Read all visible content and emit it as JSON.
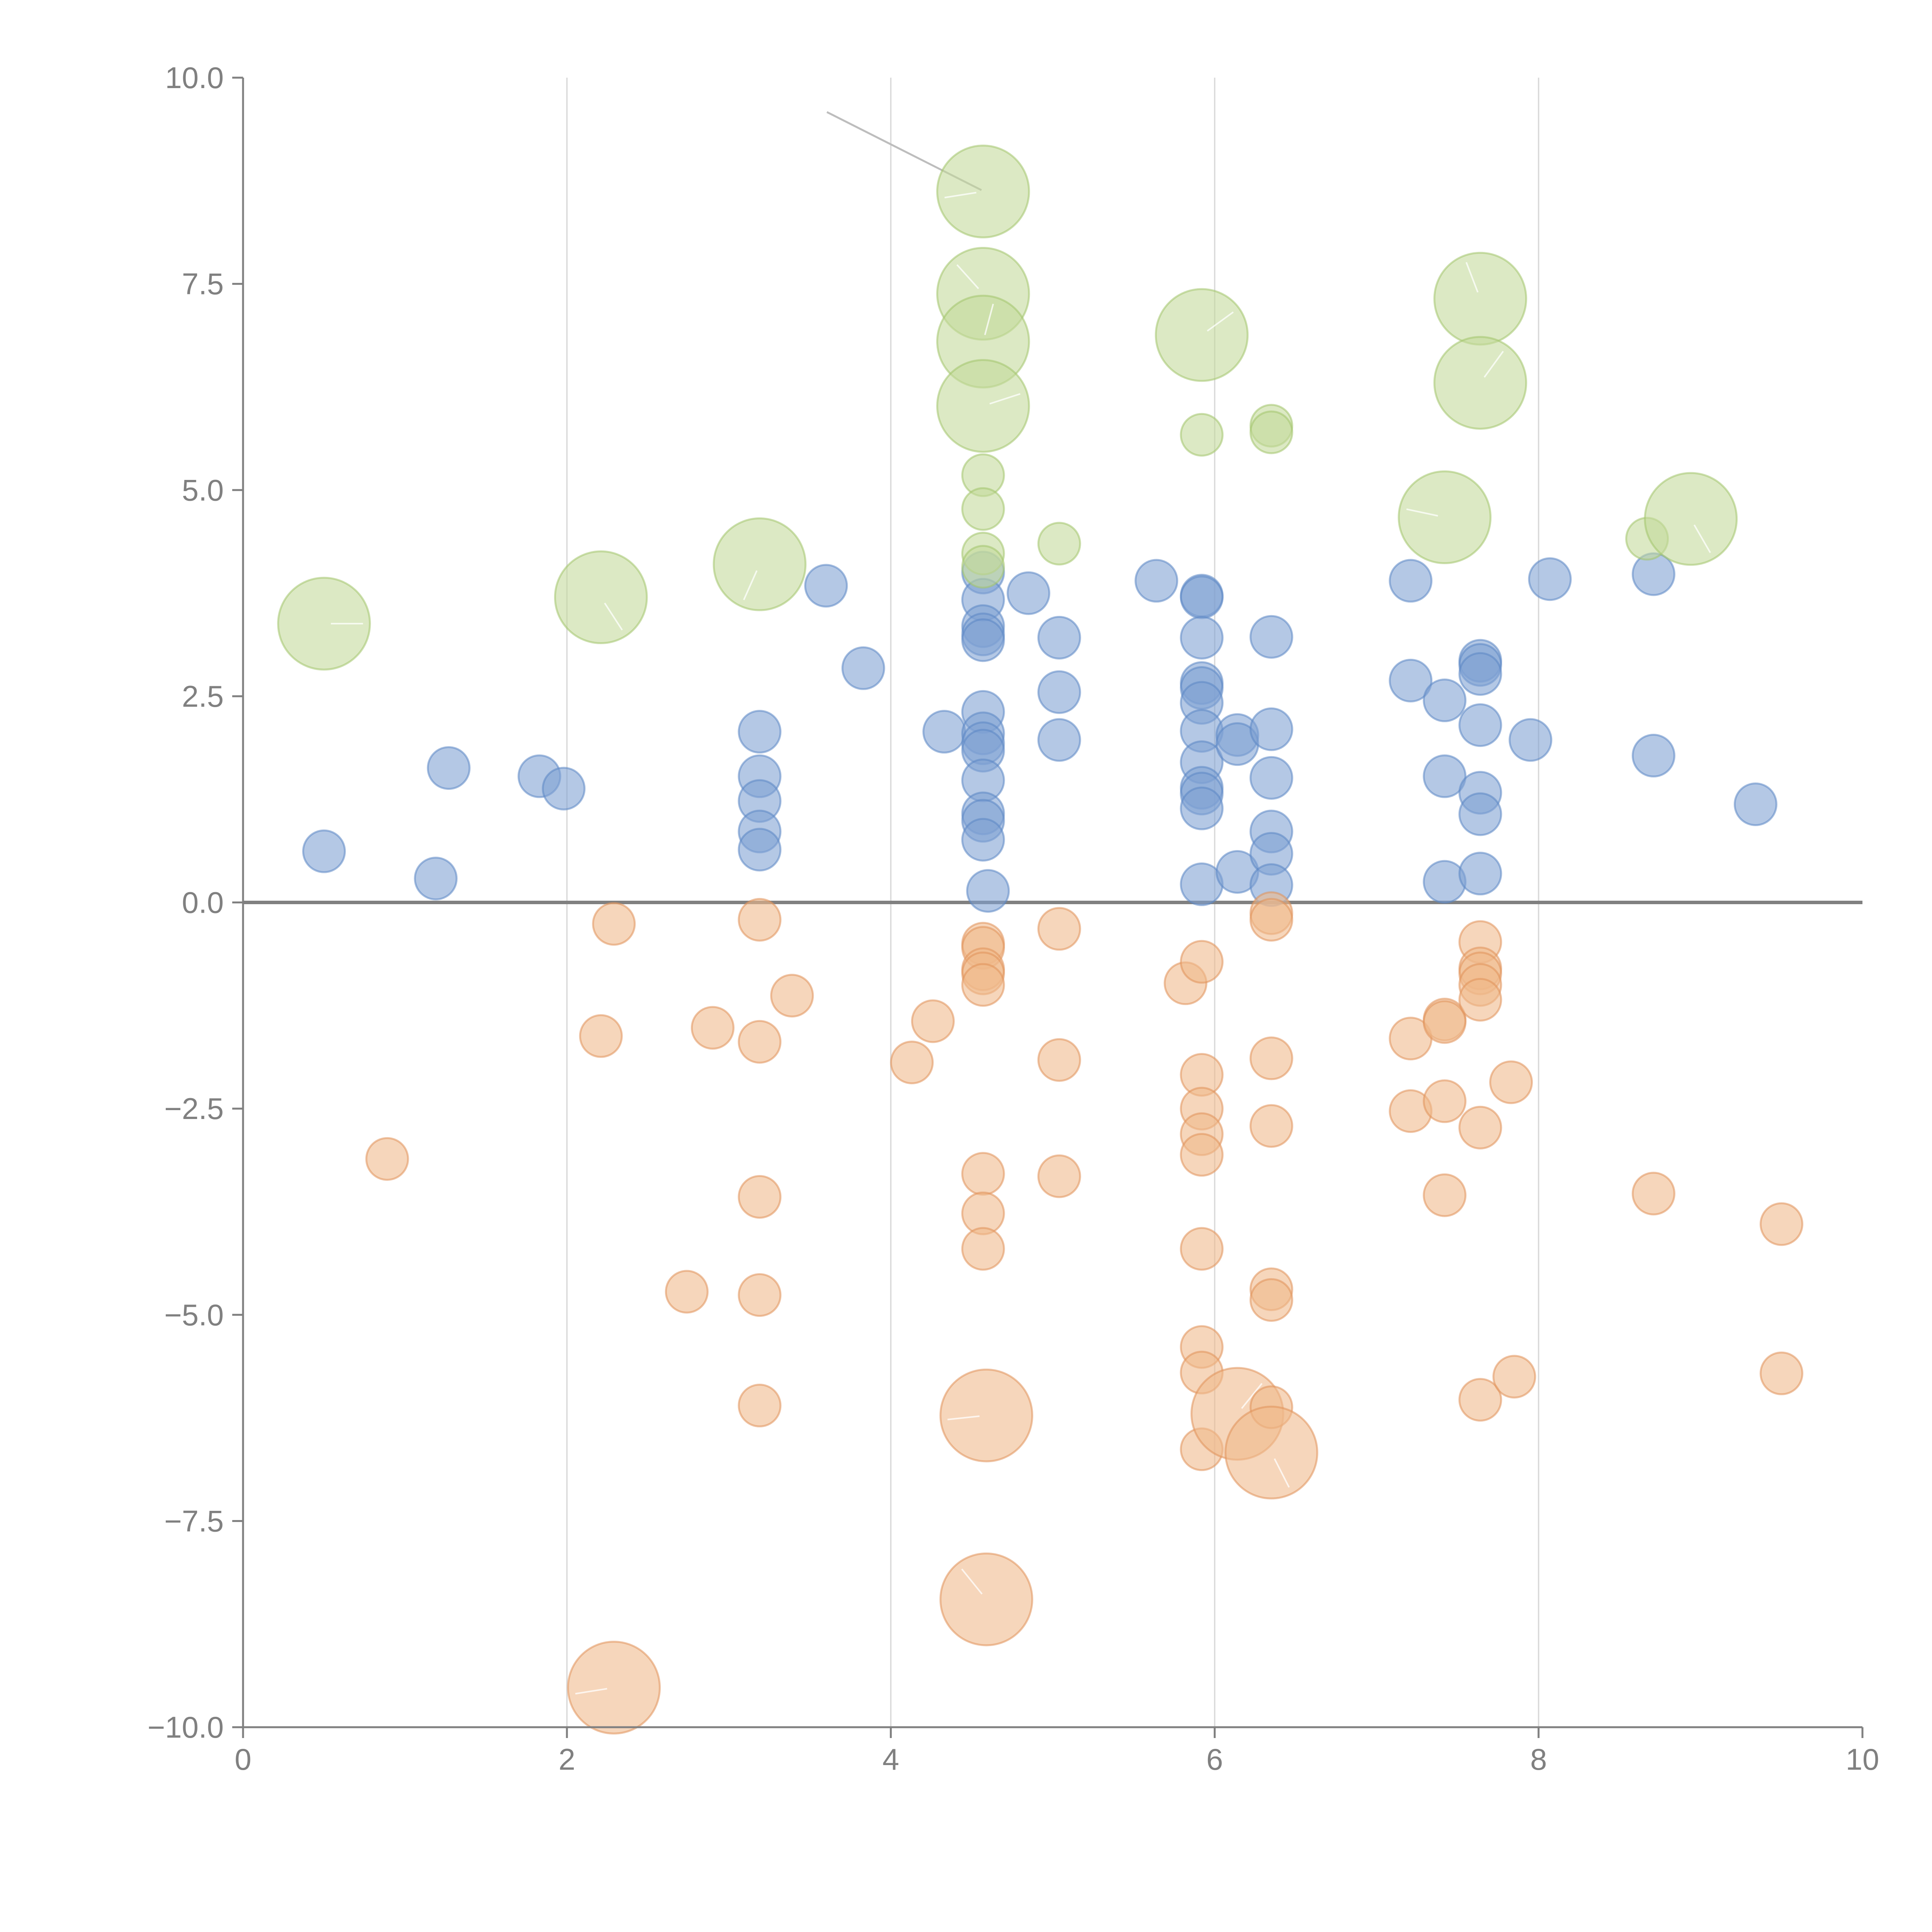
{
  "chart_data": {
    "type": "scatter",
    "subtype": "bubble",
    "title": "",
    "xlabel": "",
    "ylabel": "",
    "xlim": [
      0,
      10
    ],
    "ylim": [
      -10,
      10
    ],
    "x_ticks": [
      0,
      2,
      4,
      6,
      8,
      10
    ],
    "x_tick_labels": [
      "0",
      "2",
      "4",
      "6",
      "8",
      "10"
    ],
    "y_ticks": [
      10,
      7.5,
      5,
      2.5,
      0,
      -2.5,
      -5,
      -7.5,
      -10
    ],
    "y_tick_labels": [
      "10.0",
      "7.5",
      "5.0",
      "2.5",
      "0.0",
      "−2.5",
      "−5.0",
      "−7.5",
      "−10.0"
    ],
    "vertical_gridlines": [
      2,
      4,
      6,
      8
    ],
    "reference_line_y": 0,
    "colors": {
      "blue": "#7ea1d3",
      "blue_stroke": "#5b86c4",
      "orange": "#f0b88a",
      "orange_stroke": "#e0925a",
      "green": "#c2d99a",
      "green_stroke": "#a3c46c",
      "axis": "#808080",
      "grid": "#d9d9d9"
    },
    "series": [
      {
        "name": "blue",
        "color": "#7ea1d3",
        "points": [
          {
            "x": 0.5,
            "y": 0.62,
            "size": 1
          },
          {
            "x": 1.19,
            "y": 0.29,
            "size": 1
          },
          {
            "x": 1.27,
            "y": 1.63,
            "size": 1
          },
          {
            "x": 1.83,
            "y": 1.53,
            "size": 1
          },
          {
            "x": 1.98,
            "y": 1.38,
            "size": 1
          },
          {
            "x": 3.19,
            "y": 2.07,
            "size": 1
          },
          {
            "x": 3.19,
            "y": 1.53,
            "size": 1
          },
          {
            "x": 3.19,
            "y": 1.23,
            "size": 1
          },
          {
            "x": 3.19,
            "y": 0.86,
            "size": 1
          },
          {
            "x": 3.19,
            "y": 0.64,
            "size": 1
          },
          {
            "x": 3.6,
            "y": 3.84,
            "size": 1
          },
          {
            "x": 3.83,
            "y": 2.84,
            "size": 1
          },
          {
            "x": 4.33,
            "y": 2.07,
            "size": 1
          },
          {
            "x": 4.57,
            "y": 4.0,
            "size": 1
          },
          {
            "x": 4.57,
            "y": 3.67,
            "size": 1
          },
          {
            "x": 4.57,
            "y": 3.35,
            "size": 1
          },
          {
            "x": 4.57,
            "y": 3.25,
            "size": 1
          },
          {
            "x": 4.57,
            "y": 3.18,
            "size": 1
          },
          {
            "x": 4.57,
            "y": 2.31,
            "size": 1
          },
          {
            "x": 4.57,
            "y": 2.05,
            "size": 1
          },
          {
            "x": 4.57,
            "y": 1.93,
            "size": 1
          },
          {
            "x": 4.57,
            "y": 1.84,
            "size": 1
          },
          {
            "x": 4.57,
            "y": 1.48,
            "size": 1
          },
          {
            "x": 4.57,
            "y": 1.08,
            "size": 1
          },
          {
            "x": 4.57,
            "y": 0.99,
            "size": 1
          },
          {
            "x": 4.57,
            "y": 0.76,
            "size": 1
          },
          {
            "x": 4.6,
            "y": 0.14,
            "size": 1
          },
          {
            "x": 4.85,
            "y": 3.75,
            "size": 1
          },
          {
            "x": 5.04,
            "y": 3.21,
            "size": 1
          },
          {
            "x": 5.04,
            "y": 2.55,
            "size": 1
          },
          {
            "x": 5.04,
            "y": 1.97,
            "size": 1
          },
          {
            "x": 5.64,
            "y": 3.9,
            "size": 1
          },
          {
            "x": 5.92,
            "y": 3.72,
            "size": 1
          },
          {
            "x": 5.92,
            "y": 3.7,
            "size": 1
          },
          {
            "x": 5.92,
            "y": 3.21,
            "size": 1
          },
          {
            "x": 5.92,
            "y": 2.66,
            "size": 1
          },
          {
            "x": 5.92,
            "y": 2.6,
            "size": 1
          },
          {
            "x": 5.92,
            "y": 2.42,
            "size": 1
          },
          {
            "x": 5.92,
            "y": 2.08,
            "size": 1
          },
          {
            "x": 5.92,
            "y": 1.7,
            "size": 1
          },
          {
            "x": 5.92,
            "y": 1.39,
            "size": 1
          },
          {
            "x": 5.92,
            "y": 1.32,
            "size": 1
          },
          {
            "x": 5.92,
            "y": 1.14,
            "size": 1
          },
          {
            "x": 5.92,
            "y": 0.22,
            "size": 1
          },
          {
            "x": 6.14,
            "y": 2.03,
            "size": 1
          },
          {
            "x": 6.14,
            "y": 1.92,
            "size": 1
          },
          {
            "x": 6.14,
            "y": 0.37,
            "size": 1
          },
          {
            "x": 6.35,
            "y": 3.22,
            "size": 1
          },
          {
            "x": 6.35,
            "y": 2.1,
            "size": 1
          },
          {
            "x": 6.35,
            "y": 1.51,
            "size": 1
          },
          {
            "x": 6.35,
            "y": 0.86,
            "size": 1
          },
          {
            "x": 6.35,
            "y": 0.59,
            "size": 1
          },
          {
            "x": 6.35,
            "y": 0.21,
            "size": 1
          },
          {
            "x": 7.21,
            "y": 3.9,
            "size": 1
          },
          {
            "x": 7.21,
            "y": 2.69,
            "size": 1
          },
          {
            "x": 7.42,
            "y": 2.45,
            "size": 1
          },
          {
            "x": 7.42,
            "y": 1.53,
            "size": 1
          },
          {
            "x": 7.42,
            "y": 0.25,
            "size": 1
          },
          {
            "x": 7.64,
            "y": 2.93,
            "size": 1
          },
          {
            "x": 7.64,
            "y": 2.88,
            "size": 1
          },
          {
            "x": 7.64,
            "y": 2.77,
            "size": 1
          },
          {
            "x": 7.64,
            "y": 2.15,
            "size": 1
          },
          {
            "x": 7.64,
            "y": 1.33,
            "size": 1
          },
          {
            "x": 7.64,
            "y": 1.07,
            "size": 1
          },
          {
            "x": 7.64,
            "y": 0.35,
            "size": 1
          },
          {
            "x": 7.95,
            "y": 1.97,
            "size": 1
          },
          {
            "x": 8.07,
            "y": 3.92,
            "size": 1
          },
          {
            "x": 8.71,
            "y": 3.98,
            "size": 1
          },
          {
            "x": 8.71,
            "y": 1.78,
            "size": 1
          },
          {
            "x": 9.34,
            "y": 1.19,
            "size": 1
          }
        ]
      },
      {
        "name": "orange",
        "color": "#f0b88a",
        "points": [
          {
            "x": 0.89,
            "y": -3.11,
            "size": 1
          },
          {
            "x": 2.21,
            "y": -1.62,
            "size": 1
          },
          {
            "x": 2.29,
            "y": -0.26,
            "size": 1
          },
          {
            "x": 2.29,
            "y": -9.52,
            "size": 2.2
          },
          {
            "x": 2.74,
            "y": -4.72,
            "size": 1
          },
          {
            "x": 2.9,
            "y": -1.52,
            "size": 1
          },
          {
            "x": 3.19,
            "y": -0.21,
            "size": 1
          },
          {
            "x": 3.19,
            "y": -1.69,
            "size": 1
          },
          {
            "x": 3.19,
            "y": -3.57,
            "size": 1
          },
          {
            "x": 3.19,
            "y": -4.76,
            "size": 1
          },
          {
            "x": 3.19,
            "y": -6.1,
            "size": 1
          },
          {
            "x": 3.39,
            "y": -1.13,
            "size": 1
          },
          {
            "x": 4.13,
            "y": -1.94,
            "size": 1
          },
          {
            "x": 4.26,
            "y": -1.44,
            "size": 1
          },
          {
            "x": 4.57,
            "y": -0.5,
            "size": 1
          },
          {
            "x": 4.57,
            "y": -0.55,
            "size": 1
          },
          {
            "x": 4.57,
            "y": -0.81,
            "size": 1
          },
          {
            "x": 4.57,
            "y": -0.86,
            "size": 1
          },
          {
            "x": 4.57,
            "y": -1.0,
            "size": 1
          },
          {
            "x": 4.57,
            "y": -3.29,
            "size": 1
          },
          {
            "x": 4.57,
            "y": -3.77,
            "size": 1
          },
          {
            "x": 4.57,
            "y": -4.2,
            "size": 1
          },
          {
            "x": 4.59,
            "y": -6.22,
            "size": 2.2
          },
          {
            "x": 4.59,
            "y": -8.45,
            "size": 2.2
          },
          {
            "x": 5.04,
            "y": -0.32,
            "size": 1
          },
          {
            "x": 5.04,
            "y": -1.91,
            "size": 1
          },
          {
            "x": 5.04,
            "y": -3.32,
            "size": 1
          },
          {
            "x": 5.82,
            "y": -0.98,
            "size": 1
          },
          {
            "x": 5.92,
            "y": -0.72,
            "size": 1
          },
          {
            "x": 5.92,
            "y": -2.09,
            "size": 1
          },
          {
            "x": 5.92,
            "y": -2.5,
            "size": 1
          },
          {
            "x": 5.92,
            "y": -2.81,
            "size": 1
          },
          {
            "x": 5.92,
            "y": -3.06,
            "size": 1
          },
          {
            "x": 5.92,
            "y": -4.2,
            "size": 1
          },
          {
            "x": 5.92,
            "y": -5.39,
            "size": 1
          },
          {
            "x": 5.92,
            "y": -5.7,
            "size": 1
          },
          {
            "x": 5.92,
            "y": -6.63,
            "size": 1
          },
          {
            "x": 6.14,
            "y": -6.2,
            "size": 2.2
          },
          {
            "x": 6.35,
            "y": -6.12,
            "size": 1
          },
          {
            "x": 6.35,
            "y": -6.67,
            "size": 2.2
          },
          {
            "x": 6.35,
            "y": -0.13,
            "size": 1
          },
          {
            "x": 6.35,
            "y": -0.21,
            "size": 1
          },
          {
            "x": 6.35,
            "y": -1.89,
            "size": 1
          },
          {
            "x": 6.35,
            "y": -2.71,
            "size": 1
          },
          {
            "x": 6.35,
            "y": -4.69,
            "size": 1
          },
          {
            "x": 6.35,
            "y": -4.82,
            "size": 1
          },
          {
            "x": 7.21,
            "y": -1.65,
            "size": 1
          },
          {
            "x": 7.21,
            "y": -2.53,
            "size": 1
          },
          {
            "x": 7.42,
            "y": -1.42,
            "size": 1
          },
          {
            "x": 7.42,
            "y": -1.45,
            "size": 1
          },
          {
            "x": 7.42,
            "y": -2.41,
            "size": 1
          },
          {
            "x": 7.42,
            "y": -3.55,
            "size": 1
          },
          {
            "x": 7.64,
            "y": -0.48,
            "size": 1
          },
          {
            "x": 7.64,
            "y": -0.8,
            "size": 1
          },
          {
            "x": 7.64,
            "y": -0.86,
            "size": 1
          },
          {
            "x": 7.64,
            "y": -1.0,
            "size": 1
          },
          {
            "x": 7.64,
            "y": -1.18,
            "size": 1
          },
          {
            "x": 7.64,
            "y": -2.73,
            "size": 1
          },
          {
            "x": 7.64,
            "y": -6.03,
            "size": 1
          },
          {
            "x": 7.83,
            "y": -2.18,
            "size": 1
          },
          {
            "x": 7.85,
            "y": -5.75,
            "size": 1
          },
          {
            "x": 8.71,
            "y": -3.53,
            "size": 1
          },
          {
            "x": 9.5,
            "y": -3.9,
            "size": 1
          },
          {
            "x": 9.5,
            "y": -5.71,
            "size": 1
          }
        ]
      },
      {
        "name": "green",
        "color": "#c2d99a",
        "points": [
          {
            "x": 0.5,
            "y": 3.38,
            "size": 2.2
          },
          {
            "x": 2.21,
            "y": 3.7,
            "size": 2.2
          },
          {
            "x": 3.19,
            "y": 4.1,
            "size": 2.2
          },
          {
            "x": 4.57,
            "y": 8.62,
            "size": 2.2
          },
          {
            "x": 4.57,
            "y": 7.38,
            "size": 2.2
          },
          {
            "x": 4.57,
            "y": 6.8,
            "size": 2.2
          },
          {
            "x": 4.57,
            "y": 6.02,
            "size": 2.2
          },
          {
            "x": 4.57,
            "y": 5.18,
            "size": 1
          },
          {
            "x": 4.57,
            "y": 4.77,
            "size": 1
          },
          {
            "x": 4.57,
            "y": 4.23,
            "size": 1
          },
          {
            "x": 4.57,
            "y": 4.07,
            "size": 1
          },
          {
            "x": 5.04,
            "y": 4.35,
            "size": 1
          },
          {
            "x": 5.92,
            "y": 6.88,
            "size": 2.2
          },
          {
            "x": 5.92,
            "y": 5.67,
            "size": 1
          },
          {
            "x": 6.35,
            "y": 5.78,
            "size": 1
          },
          {
            "x": 6.35,
            "y": 5.7,
            "size": 1
          },
          {
            "x": 7.42,
            "y": 4.67,
            "size": 2.2
          },
          {
            "x": 7.64,
            "y": 7.32,
            "size": 2.2
          },
          {
            "x": 7.64,
            "y": 6.3,
            "size": 2.2
          },
          {
            "x": 8.67,
            "y": 4.41,
            "size": 1
          },
          {
            "x": 8.94,
            "y": 4.65,
            "size": 2.2
          }
        ]
      }
    ]
  }
}
